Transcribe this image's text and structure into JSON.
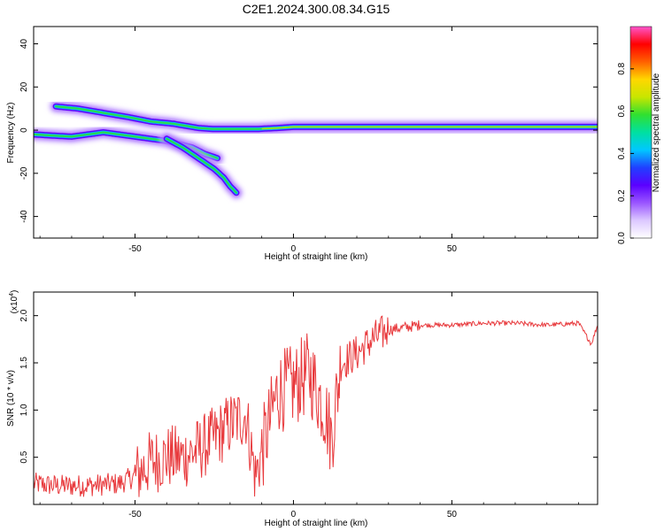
{
  "title": "C2E1.2024.300.08.34.G15",
  "colors": {
    "snr_line": "#e8393c",
    "colormap": [
      "#ffffff",
      "#dcc8ff",
      "#9a55ff",
      "#5a00ff",
      "#2040ff",
      "#00c8ff",
      "#00e0a0",
      "#30e030",
      "#c8e600",
      "#ffd700",
      "#ff6000",
      "#ff0000",
      "#ff55cc"
    ]
  },
  "chart_data": [
    {
      "type": "heatmap",
      "xlabel": "Height of straight line (km)",
      "ylabel": "Frequency (Hz)",
      "xlim": [
        -82,
        96
      ],
      "ylim": [
        -50,
        48
      ],
      "xticks": [
        -50,
        0,
        50
      ],
      "yticks": [
        -40,
        -20,
        0,
        20,
        40
      ],
      "ridges": [
        {
          "x": [
            -75,
            -68,
            -60,
            -52,
            -45,
            -38,
            -30,
            -25,
            -18,
            -12,
            -5,
            0,
            10,
            20,
            40,
            60,
            96
          ],
          "y": [
            11,
            10,
            8,
            6,
            4,
            3,
            1,
            0.5,
            0.5,
            0.5,
            1,
            1.5,
            1.5,
            1.5,
            1.5,
            1.5,
            1.5
          ]
        },
        {
          "x": [
            -82,
            -70,
            -60,
            -50,
            -40,
            -32,
            -28,
            -24
          ],
          "y": [
            -2,
            -3,
            -1,
            -3,
            -5,
            -8,
            -11,
            -13
          ]
        },
        {
          "x": [
            -40,
            -35,
            -30,
            -25,
            -22,
            -20,
            -18
          ],
          "y": [
            -4,
            -8,
            -13,
            -18,
            -22,
            -26,
            -29
          ]
        }
      ],
      "colorbar": {
        "label": "Normalized spectral amplitude",
        "range": [
          0,
          1
        ],
        "ticks": [
          "0.0",
          "0.2",
          "0.4",
          "0.6",
          "0.8"
        ]
      }
    },
    {
      "type": "line",
      "xlabel": "Height of straight line (km)",
      "ylabel": "SNR (10 * v/v)",
      "scale_label": "(x10",
      "scale_exponent": "4",
      "xlim": [
        -82,
        96
      ],
      "ylim": [
        0,
        2.25
      ],
      "xticks": [
        -50,
        0,
        50
      ],
      "yticks": [
        "0.5",
        "1.0",
        "1.5",
        "2.0"
      ],
      "series": [
        {
          "x": [
            -82,
            -75,
            -65,
            -55,
            -50,
            -45,
            -40,
            -35,
            -30,
            -25,
            -20,
            -15,
            -12,
            -8,
            -5,
            0,
            5,
            10,
            12,
            15,
            20,
            25,
            30,
            40,
            50,
            60,
            70,
            80,
            90,
            94,
            96
          ],
          "y": [
            0.22,
            0.2,
            0.2,
            0.22,
            0.3,
            0.45,
            0.5,
            0.5,
            0.58,
            0.7,
            0.85,
            0.95,
            0.3,
            0.8,
            1.2,
            1.25,
            1.4,
            1.0,
            0.7,
            1.5,
            1.6,
            1.75,
            1.85,
            1.9,
            1.9,
            1.92,
            1.92,
            1.9,
            1.92,
            1.7,
            1.9
          ]
        }
      ]
    }
  ]
}
